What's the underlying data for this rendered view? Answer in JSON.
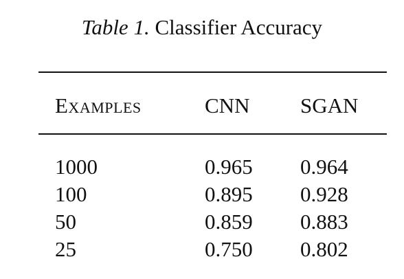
{
  "caption": {
    "label": "Table 1.",
    "title": "Classifier Accuracy"
  },
  "table": {
    "headers": [
      "Examples",
      "CNN",
      "SGAN"
    ],
    "rows": [
      [
        "1000",
        "0.965",
        "0.964"
      ],
      [
        "100",
        "0.895",
        "0.928"
      ],
      [
        "50",
        "0.859",
        "0.883"
      ],
      [
        "25",
        "0.750",
        "0.802"
      ]
    ]
  }
}
